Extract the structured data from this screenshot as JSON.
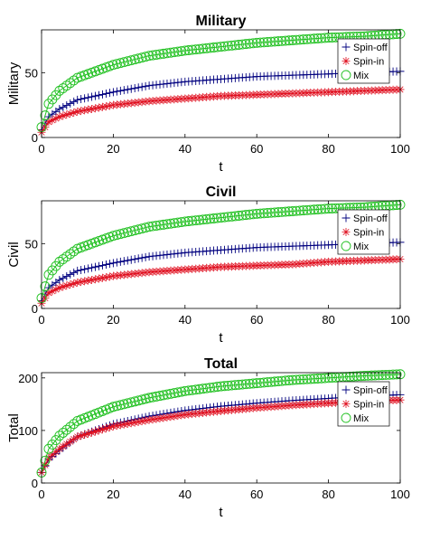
{
  "chart_data": [
    {
      "type": "line",
      "title": "Military",
      "xlabel": "t",
      "ylabel": "Military",
      "xlim": [
        0,
        100
      ],
      "ylim": [
        0,
        83
      ],
      "xticks": [
        0,
        20,
        40,
        60,
        80,
        100
      ],
      "yticks": [
        0,
        50
      ],
      "legend_position": "top-right",
      "series": [
        {
          "name": "Spin-off",
          "color": "#00007f",
          "marker": "plus",
          "x": [
            0,
            2,
            5,
            10,
            20,
            30,
            40,
            50,
            60,
            70,
            80,
            90,
            100
          ],
          "values": [
            6,
            16,
            22,
            29,
            35,
            40,
            43,
            45,
            47,
            48,
            49,
            50,
            51
          ]
        },
        {
          "name": "Spin-in",
          "color": "#e01020",
          "marker": "star",
          "x": [
            0,
            2,
            5,
            10,
            20,
            30,
            40,
            50,
            60,
            70,
            80,
            90,
            100
          ],
          "values": [
            4,
            12,
            16,
            20,
            25,
            28,
            30,
            32,
            33,
            34,
            35,
            36,
            37
          ]
        },
        {
          "name": "Mix",
          "color": "#20c020",
          "marker": "circle",
          "x": [
            0,
            2,
            5,
            10,
            20,
            30,
            40,
            50,
            60,
            70,
            80,
            90,
            100
          ],
          "values": [
            8,
            26,
            36,
            46,
            56,
            63,
            67,
            70,
            73,
            75,
            77,
            78,
            80
          ]
        }
      ]
    },
    {
      "type": "line",
      "title": "Civil",
      "xlabel": "t",
      "ylabel": "Civil",
      "xlim": [
        0,
        100
      ],
      "ylim": [
        0,
        83
      ],
      "xticks": [
        0,
        20,
        40,
        60,
        80,
        100
      ],
      "yticks": [
        0,
        50
      ],
      "legend_position": "top-right",
      "series": [
        {
          "name": "Spin-off",
          "color": "#00007f",
          "marker": "plus",
          "x": [
            0,
            2,
            5,
            10,
            20,
            30,
            40,
            50,
            60,
            70,
            80,
            90,
            100
          ],
          "values": [
            6,
            16,
            22,
            29,
            35,
            40,
            43,
            45,
            47,
            48,
            49,
            50,
            51
          ]
        },
        {
          "name": "Spin-in",
          "color": "#e01020",
          "marker": "star",
          "x": [
            0,
            2,
            5,
            10,
            20,
            30,
            40,
            50,
            60,
            70,
            80,
            90,
            100
          ],
          "values": [
            4,
            12,
            16,
            20,
            25,
            28,
            30,
            32,
            33,
            34,
            36,
            37,
            38
          ]
        },
        {
          "name": "Mix",
          "color": "#20c020",
          "marker": "circle",
          "x": [
            0,
            2,
            5,
            10,
            20,
            30,
            40,
            50,
            60,
            70,
            80,
            90,
            100
          ],
          "values": [
            8,
            26,
            36,
            46,
            56,
            63,
            67,
            70,
            73,
            75,
            77,
            78,
            80
          ]
        }
      ]
    },
    {
      "type": "line",
      "title": "Total",
      "xlabel": "t",
      "ylabel": "Total",
      "xlim": [
        0,
        100
      ],
      "ylim": [
        0,
        210
      ],
      "xticks": [
        0,
        20,
        40,
        60,
        80,
        100
      ],
      "yticks": [
        0,
        100,
        200
      ],
      "legend_position": "top-right",
      "series": [
        {
          "name": "Spin-off",
          "color": "#00007f",
          "marker": "plus",
          "x": [
            0,
            2,
            5,
            10,
            20,
            30,
            40,
            50,
            60,
            70,
            80,
            90,
            100
          ],
          "values": [
            20,
            45,
            62,
            88,
            112,
            127,
            138,
            146,
            152,
            157,
            161,
            165,
            168
          ]
        },
        {
          "name": "Spin-in",
          "color": "#e01020",
          "marker": "star",
          "x": [
            0,
            2,
            5,
            10,
            20,
            30,
            40,
            50,
            60,
            70,
            80,
            90,
            100
          ],
          "values": [
            20,
            48,
            65,
            88,
            108,
            120,
            130,
            137,
            143,
            148,
            152,
            156,
            158
          ]
        },
        {
          "name": "Mix",
          "color": "#20c020",
          "marker": "circle",
          "x": [
            0,
            2,
            5,
            10,
            20,
            30,
            40,
            50,
            60,
            70,
            80,
            90,
            100
          ],
          "values": [
            20,
            65,
            90,
            118,
            145,
            162,
            175,
            184,
            190,
            196,
            200,
            204,
            207
          ]
        }
      ]
    }
  ]
}
